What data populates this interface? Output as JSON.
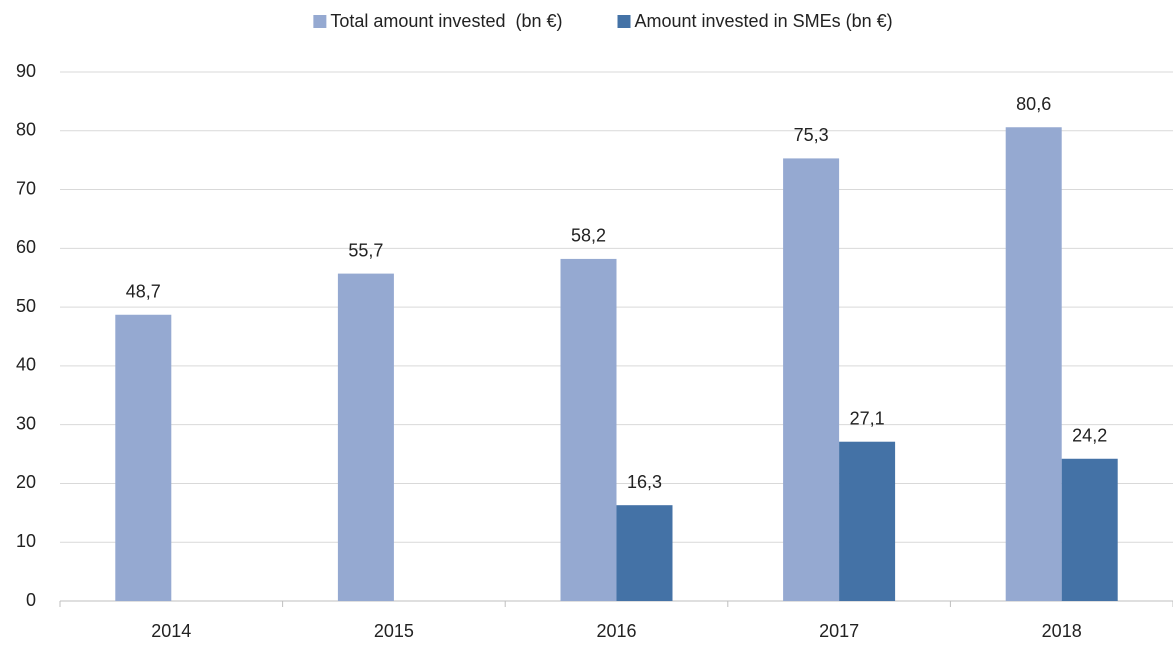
{
  "chart_data": {
    "type": "bar",
    "categories": [
      "2014",
      "2015",
      "2016",
      "2017",
      "2018"
    ],
    "series": [
      {
        "name": "Total amount invested  (bn €)",
        "color": "#95a9d1",
        "values": [
          48.7,
          55.7,
          58.2,
          75.3,
          80.6
        ],
        "value_labels": [
          "48,7",
          "55,7",
          "58,2",
          "75,3",
          "80,6"
        ]
      },
      {
        "name": "Amount invested in SMEs (bn €)",
        "color": "#4472a6",
        "values": [
          null,
          null,
          16.3,
          27.1,
          24.2
        ],
        "value_labels": [
          null,
          null,
          "16,3",
          "27,1",
          "24,2"
        ]
      }
    ],
    "ylim": [
      0,
      90
    ],
    "yticks": [
      0,
      10,
      20,
      30,
      40,
      50,
      60,
      70,
      80,
      90
    ],
    "grid": true,
    "legend": "top"
  }
}
